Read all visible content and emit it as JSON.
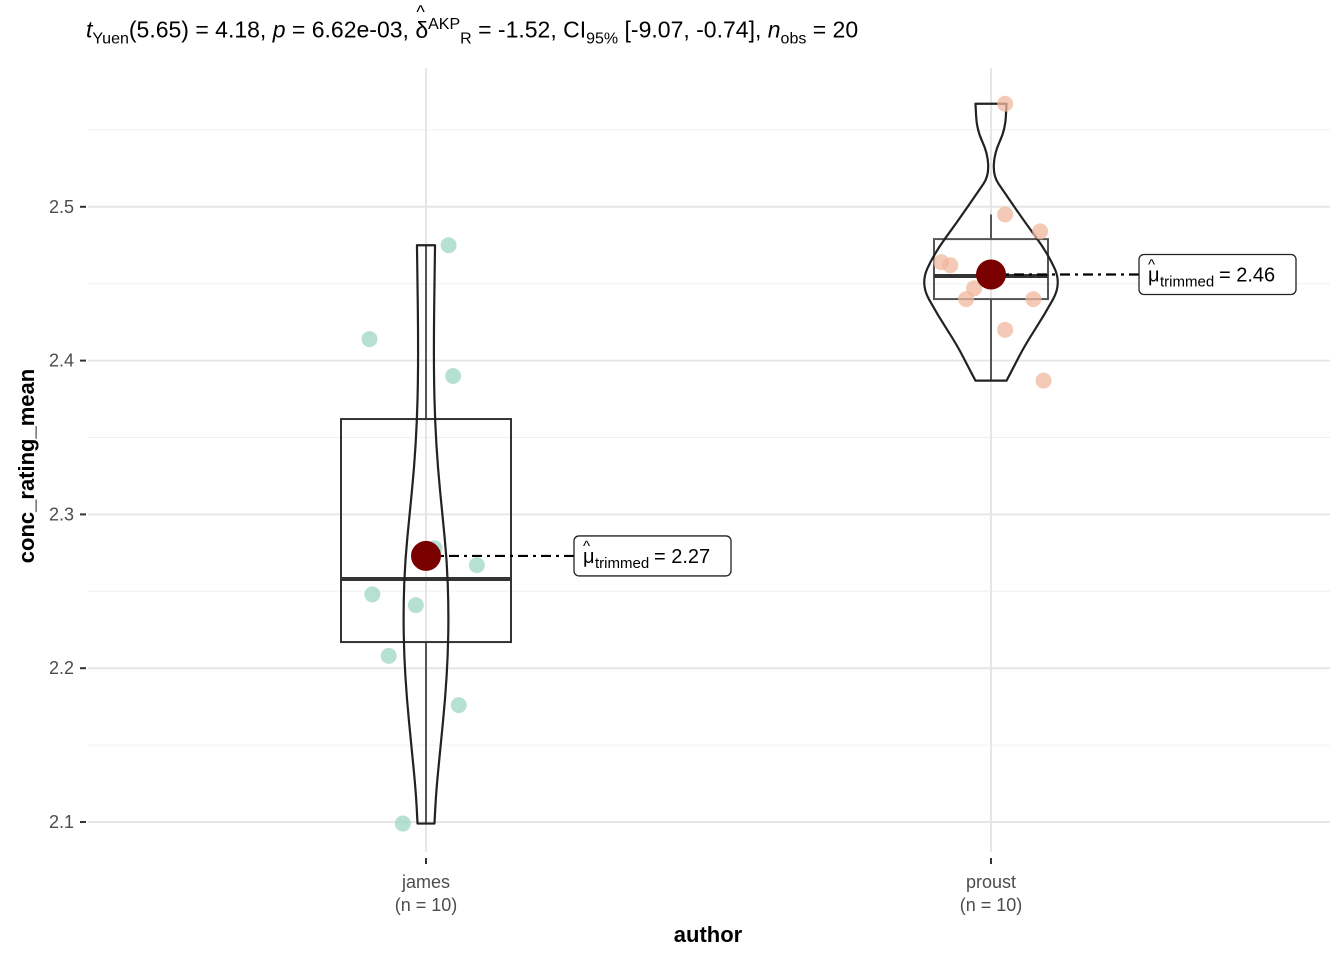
{
  "subtitle": {
    "t_symbol": "t",
    "t_sub": "Yuen",
    "t_df": "(5.65) = 4.18, ",
    "p_symbol": "p",
    "p_value": " = 6.62e-03, ",
    "delta_symbol": "δ",
    "delta_hat": "^",
    "delta_sup": "AKP",
    "delta_sub": "R",
    "delta_value": " = -1.52, CI",
    "ci_sub": "95%",
    "ci_value": " [-9.07, -0.74], ",
    "n_symbol": "n",
    "n_sub": "obs",
    "n_value": " = 20"
  },
  "chart_data": {
    "type": "violin-box-scatter",
    "xlabel": "author",
    "ylabel": "conc_rating_mean",
    "ylim": [
      2.085,
      2.58
    ],
    "yticks": [
      2.1,
      2.2,
      2.3,
      2.4,
      2.5
    ],
    "ytick_labels": [
      "2.1",
      "2.2",
      "2.3",
      "2.4",
      "2.5"
    ],
    "grid": true,
    "categories": [
      {
        "name": "james",
        "n_label": "(n = 10)",
        "color": "#9fd5c5",
        "points": [
          {
            "jitter": 0.04,
            "y": 2.475
          },
          {
            "jitter": -0.1,
            "y": 2.414
          },
          {
            "jitter": 0.048,
            "y": 2.39
          },
          {
            "jitter": 0.015,
            "y": 2.278
          },
          {
            "jitter": 0.09,
            "y": 2.267
          },
          {
            "jitter": -0.095,
            "y": 2.248
          },
          {
            "jitter": -0.018,
            "y": 2.241
          },
          {
            "jitter": -0.066,
            "y": 2.208
          },
          {
            "jitter": 0.058,
            "y": 2.176
          },
          {
            "jitter": -0.041,
            "y": 2.099
          }
        ],
        "box": {
          "q1": 2.217,
          "median": 2.258,
          "q3": 2.362,
          "whisker_low": 2.099,
          "whisker_high": 2.475
        },
        "violin": [
          {
            "y": 2.099,
            "w": 0.03
          },
          {
            "y": 2.12,
            "w": 0.036
          },
          {
            "y": 2.15,
            "w": 0.052
          },
          {
            "y": 2.18,
            "w": 0.068
          },
          {
            "y": 2.21,
            "w": 0.078
          },
          {
            "y": 2.24,
            "w": 0.08
          },
          {
            "y": 2.27,
            "w": 0.074
          },
          {
            "y": 2.3,
            "w": 0.058
          },
          {
            "y": 2.33,
            "w": 0.042
          },
          {
            "y": 2.36,
            "w": 0.032
          },
          {
            "y": 2.39,
            "w": 0.028
          },
          {
            "y": 2.42,
            "w": 0.028
          },
          {
            "y": 2.45,
            "w": 0.03
          },
          {
            "y": 2.475,
            "w": 0.032
          }
        ],
        "trimmed_mean": 2.273,
        "mean_label_value": " = 2.27"
      },
      {
        "name": "proust",
        "n_label": "(n = 10)",
        "color": "#f0b79e",
        "points": [
          {
            "jitter": 0.025,
            "y": 2.567
          },
          {
            "jitter": 0.025,
            "y": 2.495
          },
          {
            "jitter": 0.087,
            "y": 2.484
          },
          {
            "jitter": -0.088,
            "y": 2.464
          },
          {
            "jitter": -0.072,
            "y": 2.462
          },
          {
            "jitter": -0.03,
            "y": 2.447
          },
          {
            "jitter": -0.044,
            "y": 2.44
          },
          {
            "jitter": 0.075,
            "y": 2.44
          },
          {
            "jitter": 0.025,
            "y": 2.42
          },
          {
            "jitter": 0.093,
            "y": 2.387
          }
        ],
        "box": {
          "q1": 2.44,
          "median": 2.455,
          "q3": 2.479,
          "whisker_low": 2.387,
          "whisker_high": 2.495
        },
        "violin": [
          {
            "y": 2.387,
            "w": 0.055
          },
          {
            "y": 2.395,
            "w": 0.078
          },
          {
            "y": 2.41,
            "w": 0.12
          },
          {
            "y": 2.43,
            "w": 0.19
          },
          {
            "y": 2.45,
            "w": 0.25
          },
          {
            "y": 2.47,
            "w": 0.2
          },
          {
            "y": 2.49,
            "w": 0.12
          },
          {
            "y": 2.51,
            "w": 0.045
          },
          {
            "y": 2.52,
            "w": 0.008
          },
          {
            "y": 2.535,
            "w": 0.012
          },
          {
            "y": 2.55,
            "w": 0.05
          },
          {
            "y": 2.567,
            "w": 0.055
          }
        ],
        "trimmed_mean": 2.456,
        "mean_label_value": " = 2.46"
      }
    ],
    "mean_label_symbol": "μ",
    "mean_label_hat": "^",
    "mean_label_sub": "trimmed",
    "mean_color": "#7a0000"
  }
}
